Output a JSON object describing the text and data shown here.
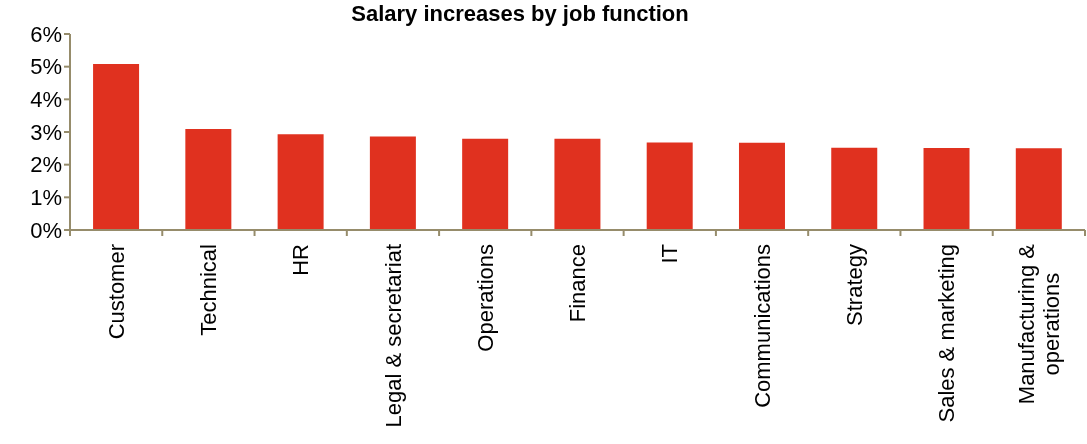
{
  "chart_data": {
    "type": "bar",
    "title": "Salary increases by job function",
    "categories": [
      "Customer",
      "Technical",
      "HR",
      "Legal & secretariat",
      "Operations",
      "Finance",
      "IT",
      "Communications",
      "Strategy",
      "Sales & marketing",
      "Manufacturing & operations"
    ],
    "values": [
      5.08,
      3.09,
      2.93,
      2.86,
      2.79,
      2.79,
      2.68,
      2.67,
      2.52,
      2.51,
      2.5
    ],
    "color": "#e0311f",
    "ylim": [
      0,
      6
    ],
    "yticks": [
      {
        "value": 0,
        "label": "0%"
      },
      {
        "value": 1,
        "label": "1%"
      },
      {
        "value": 2,
        "label": "2%"
      },
      {
        "value": 3,
        "label": "3%"
      },
      {
        "value": 4,
        "label": "4%"
      },
      {
        "value": 5,
        "label": "5%"
      },
      {
        "value": 6,
        "label": "6%"
      }
    ]
  }
}
